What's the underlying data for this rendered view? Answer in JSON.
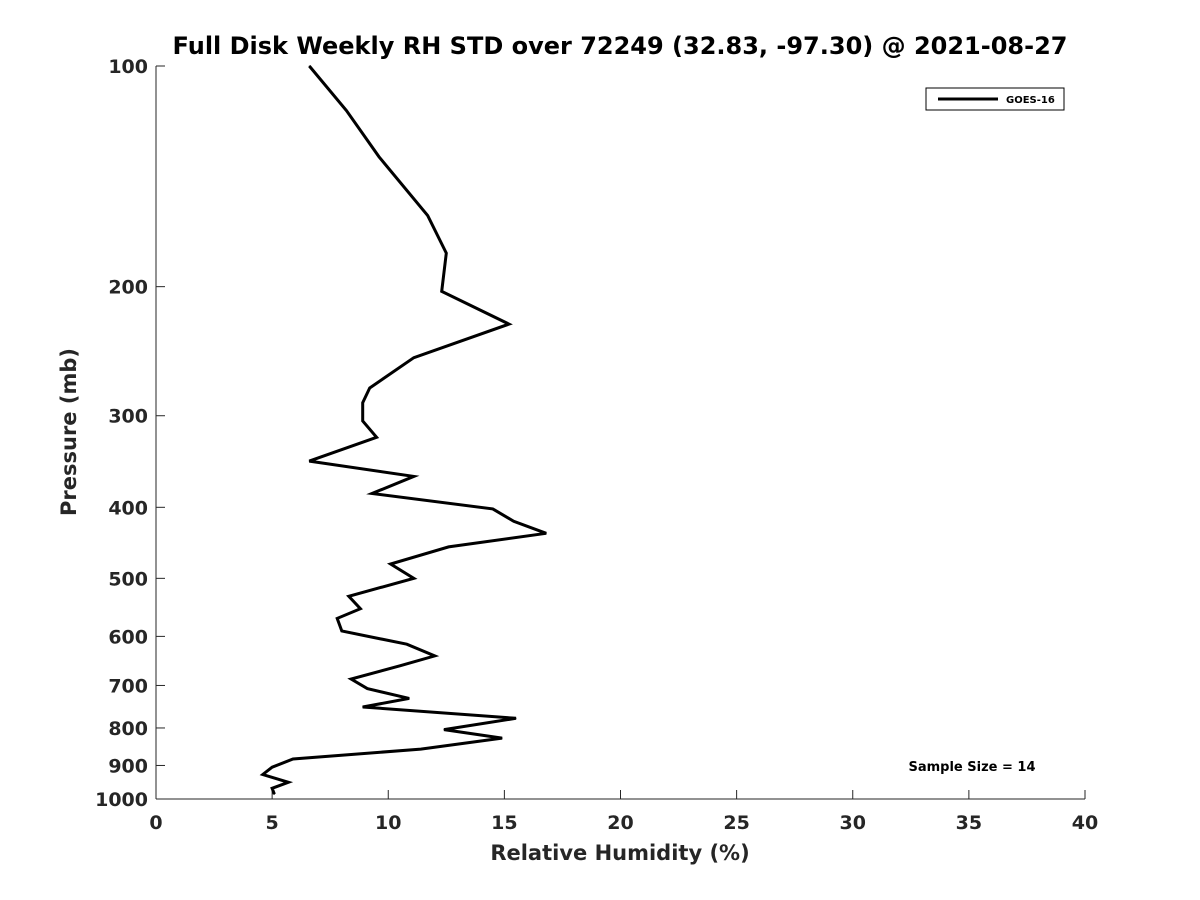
{
  "chart_data": {
    "type": "line",
    "title": "Full Disk Weekly RH STD over 72249 (32.83, -97.30) @ 2021-08-27",
    "xlabel": "Relative Humidity (%)",
    "ylabel": "Pressure (mb)",
    "xlim": [
      0,
      40
    ],
    "ylim": [
      100,
      1000
    ],
    "y_scale": "log",
    "y_reversed": true,
    "x_ticks": [
      "0",
      "5",
      "10",
      "15",
      "20",
      "25",
      "30",
      "35",
      "40"
    ],
    "y_ticks": [
      "100",
      "200",
      "300",
      "400",
      "500",
      "600",
      "700",
      "800",
      "900",
      "1000"
    ],
    "grid": false,
    "legend": {
      "position": "top-right",
      "entries": [
        "GOES-16"
      ]
    },
    "annotation": "Sample Size = 14",
    "series": [
      {
        "name": "GOES-16",
        "color": "#000000",
        "points": [
          [
            6.6,
            100
          ],
          [
            8.2,
            115
          ],
          [
            9.6,
            133
          ],
          [
            11.7,
            160
          ],
          [
            12.5,
            180
          ],
          [
            12.3,
            203
          ],
          [
            15.2,
            225
          ],
          [
            11.1,
            250
          ],
          [
            9.2,
            275
          ],
          [
            8.9,
            288
          ],
          [
            8.9,
            305
          ],
          [
            9.5,
            321
          ],
          [
            6.6,
            346
          ],
          [
            11.1,
            363
          ],
          [
            9.3,
            383
          ],
          [
            14.5,
            402
          ],
          [
            15.4,
            418
          ],
          [
            16.8,
            434
          ],
          [
            12.6,
            453
          ],
          [
            10.1,
            478
          ],
          [
            11.1,
            500
          ],
          [
            8.3,
            529
          ],
          [
            8.8,
            550
          ],
          [
            7.8,
            567
          ],
          [
            8.0,
            590
          ],
          [
            10.8,
            615
          ],
          [
            12.0,
            638
          ],
          [
            10.5,
            658
          ],
          [
            8.4,
            686
          ],
          [
            9.1,
            707
          ],
          [
            10.9,
            729
          ],
          [
            8.9,
            749
          ],
          [
            15.5,
            776
          ],
          [
            12.4,
            804
          ],
          [
            14.9,
            826
          ],
          [
            11.4,
            855
          ],
          [
            5.9,
            882
          ],
          [
            5.0,
            905
          ],
          [
            4.6,
            926
          ],
          [
            5.7,
            949
          ],
          [
            5.0,
            967
          ],
          [
            5.1,
            985
          ]
        ]
      }
    ]
  }
}
